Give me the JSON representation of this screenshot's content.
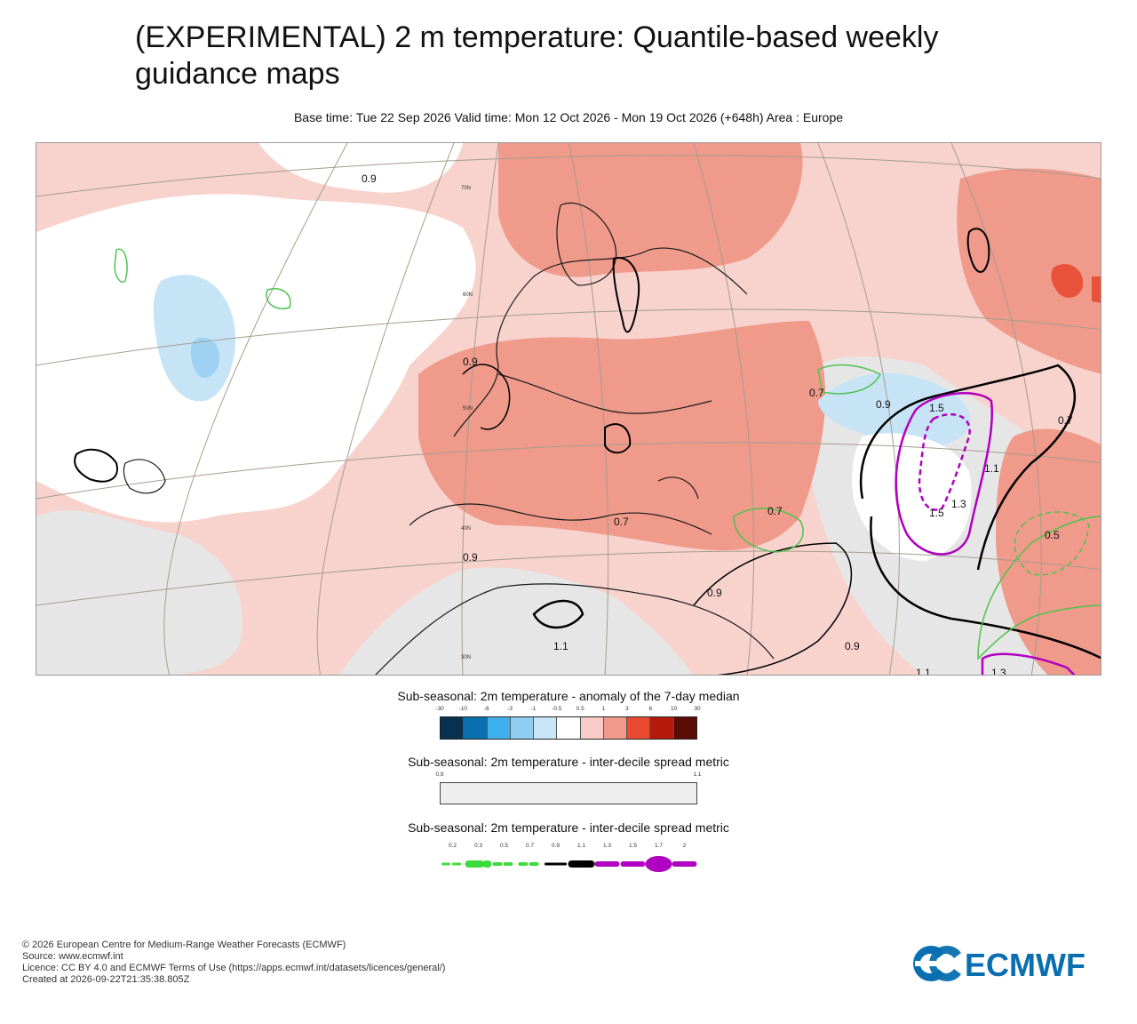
{
  "header": {
    "title": "(EXPERIMENTAL) 2 m temperature: Quantile-based weekly guidance maps",
    "subtitle": "Base time: Tue 22 Sep 2026 Valid time: Mon 12 Oct 2026 - Mon 19 Oct 2026 (+648h) Area : Europe"
  },
  "map": {
    "colors": {
      "ocean_neutral": "#ffffff",
      "background_warm": "#f8d2cc",
      "moderate_warm": "#ef9a8a",
      "strong_warm": "#e9523a",
      "spread_gray": "#e6e6e6",
      "light_cold": "#c6e4f6",
      "cold": "#9fd2f2",
      "land_outline": "#1a1a1a",
      "graticule": "#a59d8f",
      "contour_thick": "#000000",
      "contour_green": "#4fc24f",
      "contour_purple": "#b000c0"
    },
    "latitude_labels": [
      "70N",
      "60N",
      "50N",
      "40N",
      "30N"
    ],
    "contour_labels": [
      "0.9",
      "0.7",
      "0.9",
      "1.5",
      "1.5",
      "1.3",
      "1.1",
      "0.7",
      "0.5",
      "0.7",
      "0.9",
      "0.9",
      "0.9",
      "1.1",
      "0.9",
      "0.7",
      "1.1",
      "1.3"
    ]
  },
  "legend1": {
    "title": "Sub-seasonal: 2m temperature - anomaly of the 7-day median",
    "ticks": [
      "-30",
      "-10",
      "-6",
      "-3",
      "-1",
      "-0.5",
      "0.5",
      "1",
      "3",
      "6",
      "10",
      "30"
    ],
    "colors": [
      "#08304f",
      "#0a6fb0",
      "#3fb0ee",
      "#8fcef2",
      "#c8e6f8",
      "#ffffff",
      "#f8cdc7",
      "#f19a8a",
      "#ea4a30",
      "#b31a0c",
      "#5a0c05"
    ]
  },
  "legend2": {
    "title": "Sub-seasonal: 2m temperature - inter-decile spread metric",
    "ticks": [
      "0.9",
      "1.1"
    ],
    "color": "#eeeeee"
  },
  "legend3": {
    "title": "Sub-seasonal: 2m temperature - inter-decile spread metric",
    "ticks": [
      "0.2",
      "0.3",
      "0.5",
      "0.7",
      "0.9",
      "1.1",
      "1.3",
      "1.5",
      "1.7",
      "2"
    ],
    "styles": [
      {
        "color": "#3ddc3d",
        "style": "dashed-thin"
      },
      {
        "color": "#3ddc3d",
        "style": "dashed-thick"
      },
      {
        "color": "#3ddc3d",
        "style": "dashed"
      },
      {
        "color": "#3ddc3d",
        "style": "dashed"
      },
      {
        "color": "#000000",
        "style": "solid-thin"
      },
      {
        "color": "#000000",
        "style": "solid-thick"
      },
      {
        "color": "#b000c0",
        "style": "solid"
      },
      {
        "color": "#b000c0",
        "style": "solid"
      },
      {
        "color": "#b000c0",
        "style": "blob"
      },
      {
        "color": "#b000c0",
        "style": "solid"
      }
    ]
  },
  "footer": {
    "lines": [
      "© 2026 European Centre for Medium-Range Weather Forecasts (ECMWF)",
      "Source: www.ecmwf.int",
      "Licence: CC BY 4.0 and ECMWF Terms of Use (https://apps.ecmwf.int/datasets/licences/general/)",
      "Created at 2026-09-22T21:35:38.805Z"
    ],
    "logo_text": "ECMWF"
  }
}
